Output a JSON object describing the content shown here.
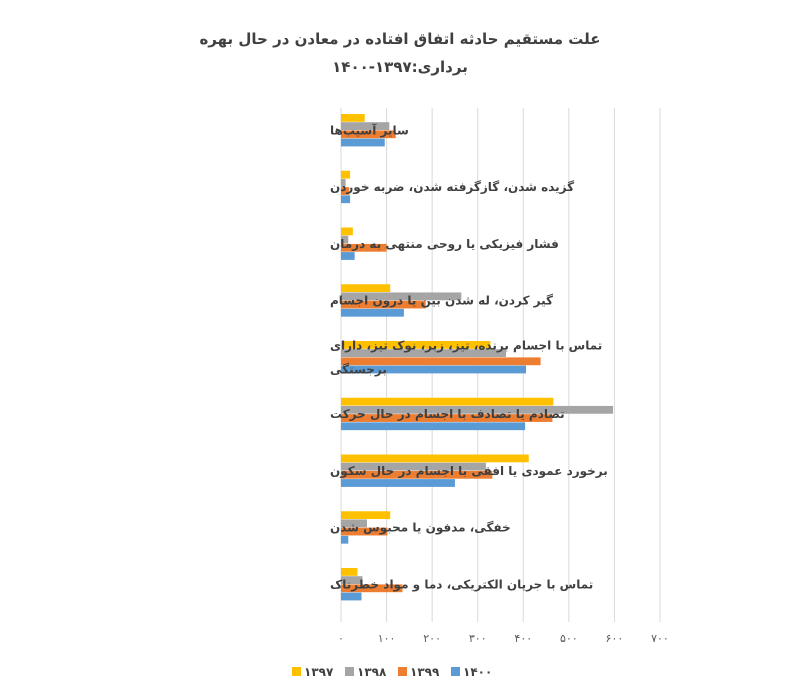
{
  "chart_data": {
    "type": "bar",
    "orientation": "horizontal",
    "title": "علت مستقیم حادثه اتفاق افتاده در معادن در حال بهره",
    "subtitle": "برداری:۱۳۹۷-۱۴۰۰",
    "categories": [
      "سایر آسیب‌ها",
      "گزیده شدن، گازگرفته شدن، ضربه خوردن",
      "فشار فیزیکی یا روحی منتهی به درمان",
      "گیر کردن، له شدن بین یا درون اجسام",
      "تماس با اجسام برنده، تیز، زبر، نوک تیز، دارای برجستگی",
      "تصادم یا تصادف با اجسام در حال حرکت",
      "برخورد عمودی یا افقی  با اجسام در حال سکون",
      "خفگی، مدفون یا محبوس شدن",
      "تماس با جریان الکتریکی، دما و مواد خطرناک"
    ],
    "series": [
      {
        "name": "۱۳۹۷",
        "color": "#FFC000",
        "values": [
          52,
          20,
          26,
          108,
          328,
          466,
          412,
          108,
          36
        ]
      },
      {
        "name": "۱۳۹۸",
        "color": "#A5A5A5",
        "values": [
          106,
          10,
          16,
          264,
          362,
          597,
          318,
          57,
          47
        ]
      },
      {
        "name": "۱۳۹۹",
        "color": "#ED7D31",
        "values": [
          120,
          18,
          100,
          186,
          438,
          464,
          332,
          102,
          135
        ]
      },
      {
        "name": "۱۴۰۰",
        "color": "#5B9BD5",
        "values": [
          96,
          20,
          30,
          138,
          406,
          404,
          250,
          16,
          45
        ]
      }
    ],
    "xlim": [
      0,
      700
    ],
    "xticks": [
      0,
      100,
      200,
      300,
      400,
      500,
      600,
      700
    ],
    "xtick_labels": [
      "۰",
      "۱۰۰",
      "۲۰۰",
      "۳۰۰",
      "۴۰۰",
      "۵۰۰",
      "۶۰۰",
      "۷۰۰"
    ],
    "grid": true,
    "legend": "bottom"
  }
}
